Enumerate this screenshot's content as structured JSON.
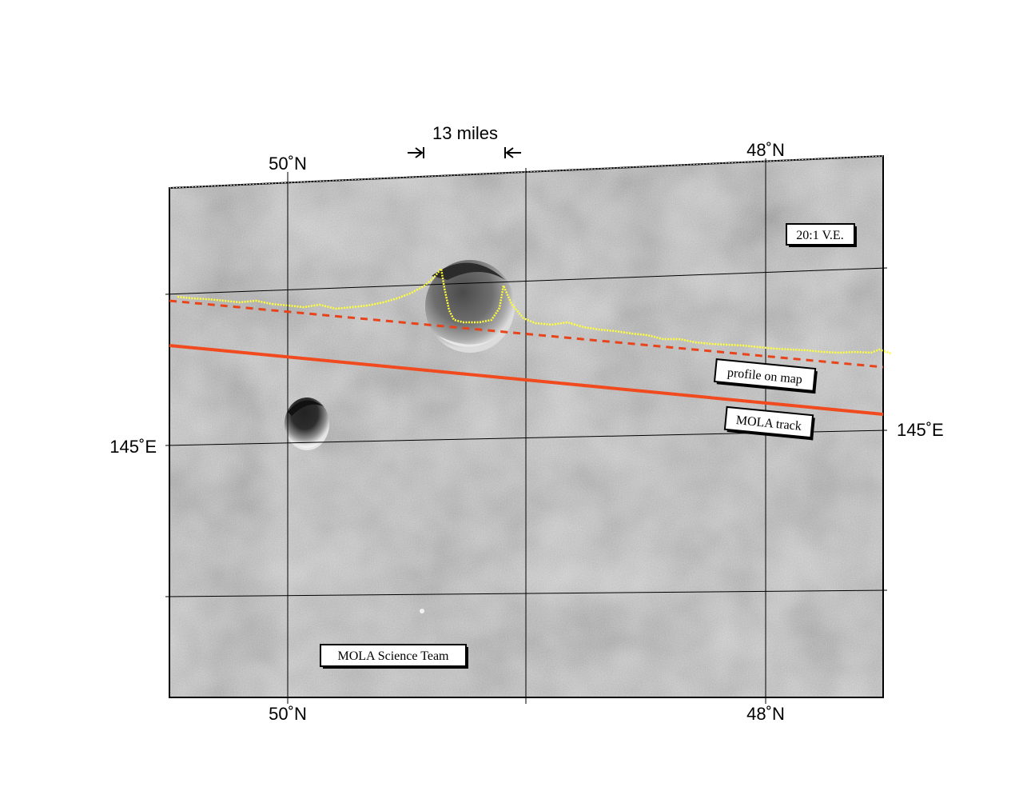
{
  "map": {
    "top_lat_labels": [
      "50˚N",
      "48˚N"
    ],
    "bottom_lat_labels": [
      "50˚N",
      "48˚N"
    ],
    "lon_left_label": "145˚E",
    "lon_right_label": "145˚E",
    "scale_label": "13 miles",
    "ve_label": "20:1 V.E.",
    "profile_label": "profile on map",
    "track_label": "MOLA track",
    "credit_label": "MOLA Science Team"
  },
  "colors": {
    "track": "#f04a1e",
    "profile_on_map": "#e8431b",
    "elevation_profile": "#ffff3a",
    "grid": "#000000",
    "terrain": "#8c8c8c"
  }
}
